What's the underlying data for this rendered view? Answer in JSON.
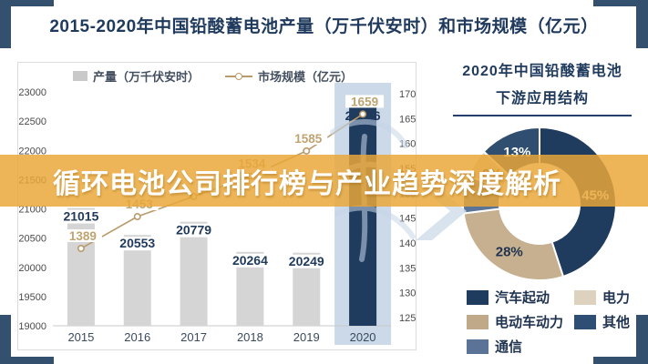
{
  "frame": {
    "title": "2015-2020年中国铅酸蓄电池产量（万千伏安时）和市场规模（亿元）",
    "corner_color": "#33516E"
  },
  "banner": {
    "text": "循环电池公司排行榜与产业趋势深度解析",
    "bg_color": "#E8A738"
  },
  "left_chart": {
    "legend": [
      {
        "label": "产量（万千伏安时）",
        "swatch": "gray-square",
        "color": "#C9C9C9"
      },
      {
        "label": "市场规模（亿元）",
        "swatch": "line-marker",
        "color": "#B99A6B"
      }
    ]
  },
  "right_chart": {
    "title_line1": "2020年中国铅酸蓄电池",
    "title_line2": "下游应用结构"
  },
  "chart_data": [
    {
      "type": "bar",
      "title": "2015-2020年中国铅酸蓄电池产量（万千伏安时）和市场规模（亿元）",
      "categories": [
        "2015",
        "2016",
        "2017",
        "2018",
        "2019",
        "2020"
      ],
      "series": [
        {
          "name": "产量（万千伏安时）",
          "type": "bar",
          "values": [
            21015,
            20553,
            20779,
            20264,
            20249,
            22736
          ],
          "color": "#D5D5D5",
          "highlight_index": 5,
          "highlight_color": "#1F3C5F",
          "highlight_band_color": "#CBD9E8",
          "label_color": "#1F3A5C"
        },
        {
          "name": "市场规模（亿元）",
          "type": "line",
          "values": [
            1389,
            1453,
            null,
            1534,
            1585,
            1659
          ],
          "color": "#B99A6B",
          "label_color": "#BFA472"
        }
      ],
      "left_axis": {
        "min": 19000,
        "max": 23000,
        "step": 500
      },
      "right_axis": {
        "min": 1250,
        "max": 1700,
        "step": 50
      },
      "grid": false,
      "legend_position": "top"
    },
    {
      "type": "pie",
      "title": "2020年中国铅酸蓄电池下游应用结构",
      "slices": [
        {
          "label": "汽车起动",
          "value": 45,
          "text": "45%",
          "color": "#1F3B5E",
          "label_color": "#FFFFFF"
        },
        {
          "label": "电动车动力",
          "value": 28,
          "text": "28%",
          "color": "#C6B090",
          "label_color": "#1F3350"
        },
        {
          "label": "通信",
          "value": 8,
          "text": "",
          "color": "#5B7396",
          "label_color": "#FFFFFF"
        },
        {
          "label": "电力",
          "value": 6,
          "text": "6%",
          "color": "#DCD2BE",
          "label_color": "#1F3350"
        },
        {
          "label": "其他",
          "value": 13,
          "text": "13%",
          "color": "#304F70",
          "label_color": "#FFFFFF"
        }
      ],
      "legend": [
        {
          "label": "汽车起动",
          "color": "#1F3B5E"
        },
        {
          "label": "电力",
          "color": "#DCD2BE"
        },
        {
          "label": "电动车动力",
          "color": "#C0A988"
        },
        {
          "label": "其他",
          "color": "#2E4E74"
        },
        {
          "label": "通信",
          "color": "#5B7396"
        }
      ],
      "legend_position": "bottom"
    }
  ]
}
